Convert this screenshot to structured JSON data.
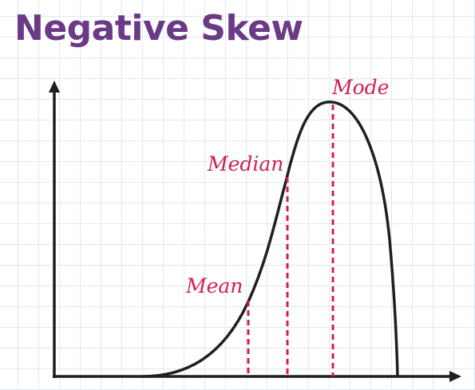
{
  "title": "Negative Skew",
  "labels": {
    "mode": "Mode",
    "median": "Median",
    "mean": "Mean"
  },
  "colors": {
    "title": "#6b3a87",
    "accent": "#d21f4f",
    "curve": "#1f1f1f",
    "axis": "#1f1f1f",
    "grid": "#dfe8f2"
  }
}
